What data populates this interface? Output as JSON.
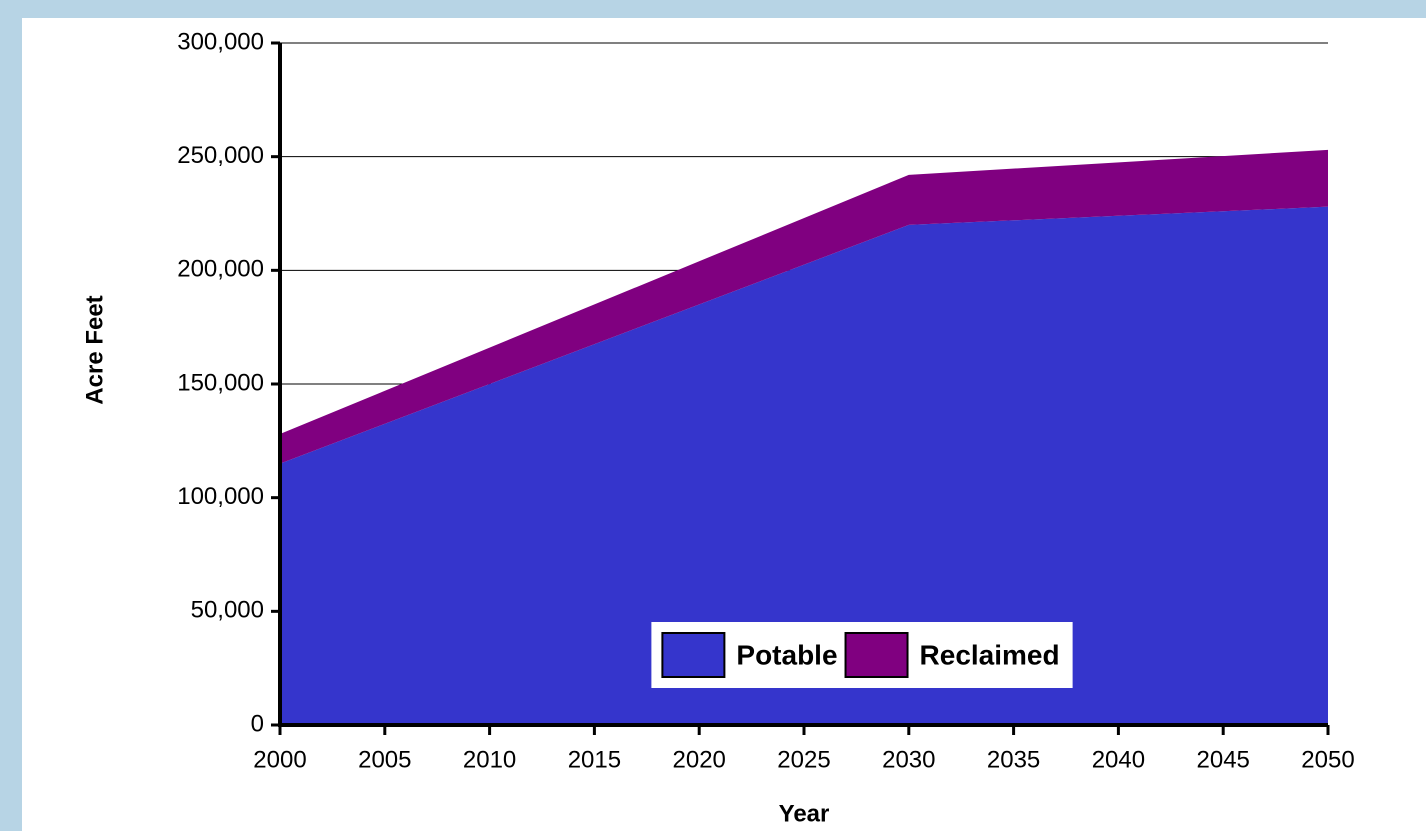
{
  "chart_data": {
    "type": "stacked_area",
    "x": [
      2000,
      2030,
      2050
    ],
    "series": [
      {
        "name": "Potable",
        "color": "#3535cc",
        "values": [
          115000,
          220000,
          228000
        ]
      },
      {
        "name": "Reclaimed",
        "color": "#800080",
        "values": [
          13000,
          22000,
          25000
        ]
      }
    ],
    "xlabel": "Year",
    "ylabel": "Acre Feet",
    "xlim": [
      2000,
      2050
    ],
    "xticks": [
      2000,
      2005,
      2010,
      2015,
      2020,
      2025,
      2030,
      2035,
      2040,
      2045,
      2050
    ],
    "ylim": [
      0,
      300000
    ],
    "yticks": [
      0,
      {
        "value": 50000,
        "label": "50,000"
      },
      {
        "value": 100000,
        "label": "100,000"
      },
      {
        "value": 150000,
        "label": "150,000"
      },
      {
        "value": 200000,
        "label": "200,000"
      },
      {
        "value": 250000,
        "label": "250,000"
      },
      {
        "value": 300000,
        "label": "300,000"
      }
    ],
    "grid": true,
    "legend": "lower center"
  }
}
